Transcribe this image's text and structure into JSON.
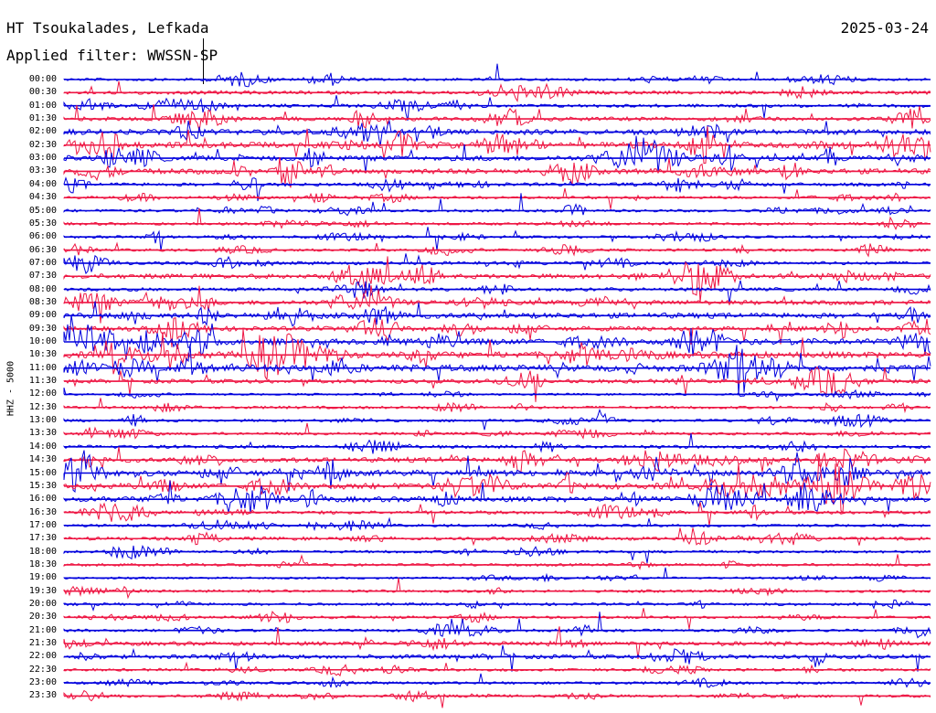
{
  "header": {
    "station": "HT Tsoukalades, Lefkada",
    "date": "2025-03-24",
    "filter": "Applied filter: WWSSN-SP"
  },
  "axis": {
    "channel_label": "HHZ - 5000"
  },
  "rows": [
    "00:00",
    "00:30",
    "01:00",
    "01:30",
    "02:00",
    "02:30",
    "03:00",
    "03:30",
    "04:00",
    "04:30",
    "05:00",
    "05:30",
    "06:00",
    "06:30",
    "07:00",
    "07:30",
    "08:00",
    "08:30",
    "09:00",
    "09:30",
    "10:00",
    "10:30",
    "11:00",
    "11:30",
    "12:00",
    "12:30",
    "13:00",
    "13:30",
    "14:00",
    "14:30",
    "15:00",
    "15:30",
    "16:00",
    "16:30",
    "17:00",
    "17:30",
    "18:00",
    "18:30",
    "19:00",
    "19:30",
    "20:00",
    "20:30",
    "21:00",
    "21:30",
    "22:00",
    "22:30",
    "23:00",
    "23:30"
  ],
  "trace_colors": [
    "#0000dd",
    "#ee1744"
  ],
  "activity": [
    2,
    3,
    3,
    4,
    6,
    7,
    6,
    6,
    3,
    2,
    2,
    2,
    2,
    2,
    3,
    5,
    3,
    5,
    6,
    5,
    7,
    8,
    8,
    4,
    1,
    2,
    2,
    2,
    3,
    5,
    7,
    7,
    6,
    3,
    2,
    3,
    2,
    2,
    1,
    2,
    2,
    2,
    2,
    4,
    4,
    2,
    2,
    2
  ]
}
